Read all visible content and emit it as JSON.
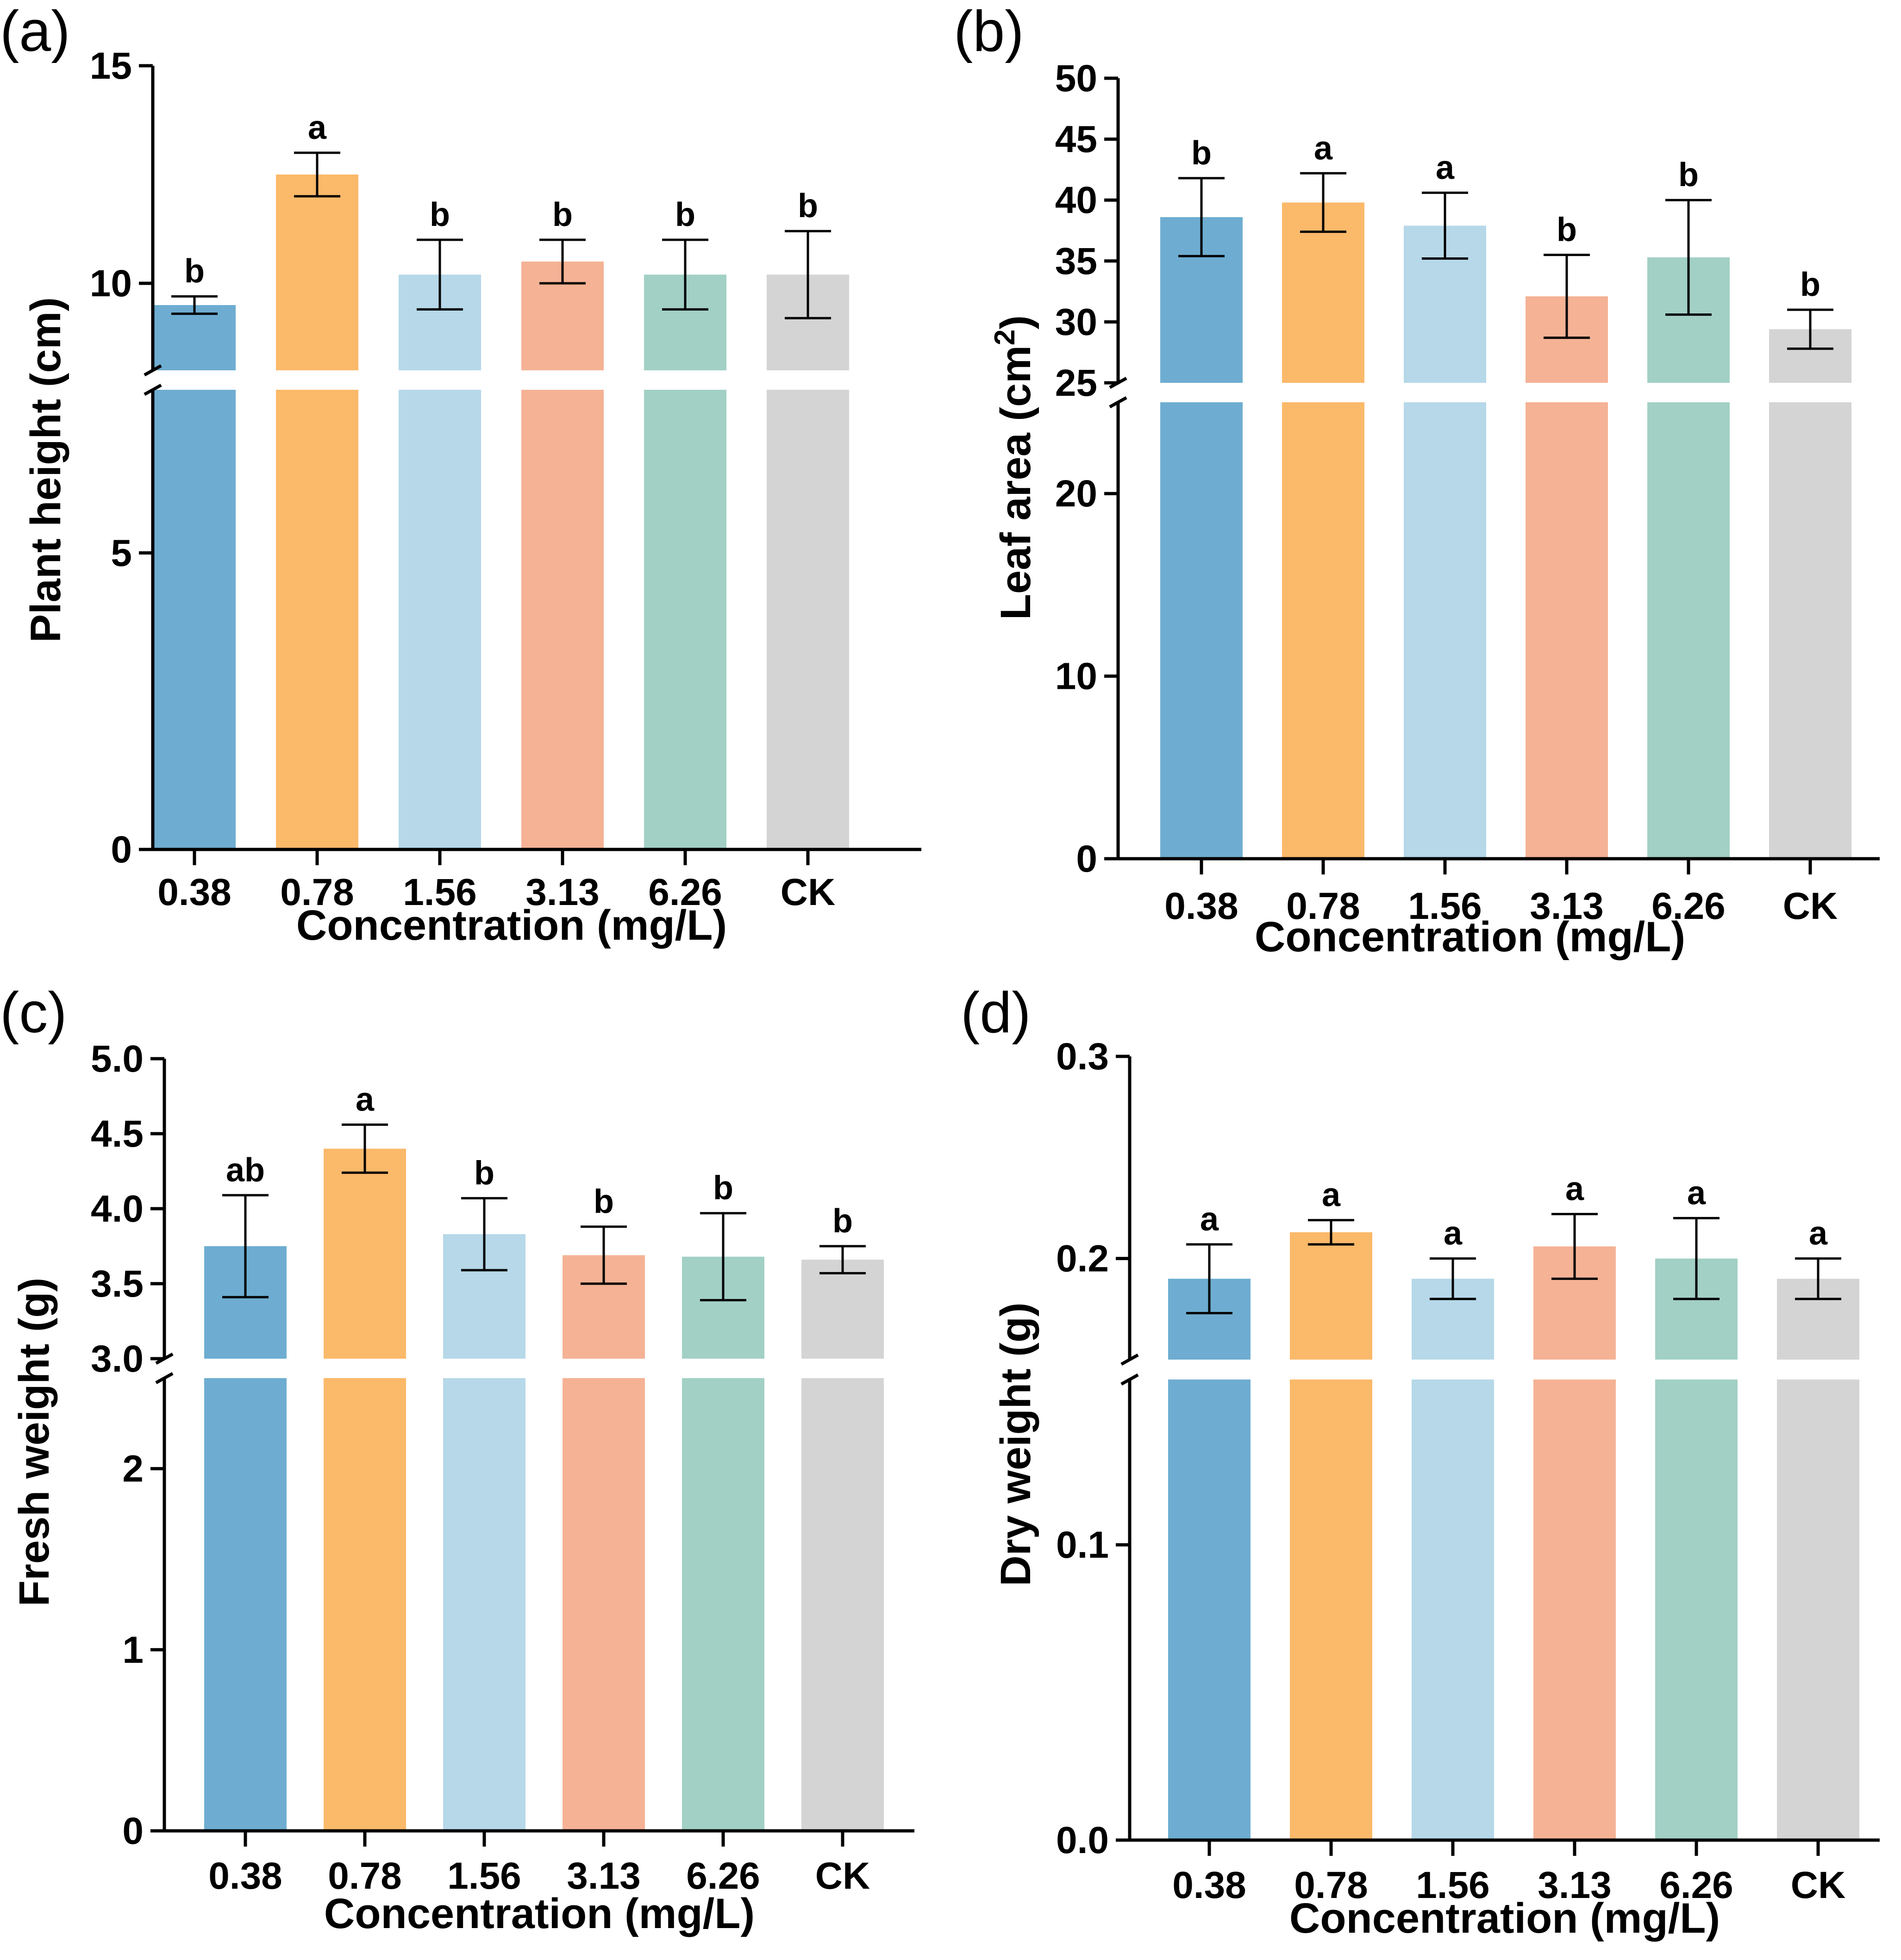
{
  "chart_data": [
    {
      "panel": "(a)",
      "type": "bar",
      "xlabel": "Concentration (mg/L)",
      "ylabel": "Plant height (cm)",
      "ylabel_super": "",
      "ylabel_tail": "",
      "categories": [
        "0.38",
        "0.78",
        "1.56",
        "3.13",
        "6.26",
        "CK"
      ],
      "values": [
        9.5,
        12.5,
        10.2,
        10.5,
        10.2,
        10.2
      ],
      "errors": [
        0.2,
        0.5,
        0.8,
        0.5,
        0.8,
        1.0
      ],
      "significance": [
        "b",
        "a",
        "b",
        "b",
        "b",
        "b"
      ],
      "axis_break": true,
      "ylim_lower": [
        0,
        7.75
      ],
      "ylim_upper": [
        8,
        15
      ],
      "yticks_lower": [
        "0",
        "5"
      ],
      "yticks_upper": [
        "10",
        "15"
      ]
    },
    {
      "panel": "(b)",
      "type": "bar",
      "xlabel": "Concentration (mg/L)",
      "ylabel": "Leaf area (cm",
      "ylabel_super": "2",
      "ylabel_tail": ")",
      "categories": [
        "0.38",
        "0.78",
        "1.56",
        "3.13",
        "6.26",
        "CK"
      ],
      "values": [
        38.6,
        39.8,
        37.9,
        32.1,
        35.3,
        29.4
      ],
      "errors": [
        3.2,
        2.4,
        2.7,
        3.4,
        4.7,
        1.6
      ],
      "significance": [
        "b",
        "a",
        "a",
        "b",
        "b",
        "b"
      ],
      "axis_break": true,
      "ylim_lower": [
        0,
        25
      ],
      "ylim_upper": [
        25,
        50
      ],
      "yticks_lower": [
        "0",
        "10",
        "20"
      ],
      "yticks_upper": [
        "25",
        "30",
        "35",
        "40",
        "45",
        "50"
      ]
    },
    {
      "panel": "(c)",
      "type": "bar",
      "xlabel": "Concentration (mg/L)",
      "ylabel": "Fresh weight (g)",
      "ylabel_super": "",
      "ylabel_tail": "",
      "categories": [
        "0.38",
        "0.78",
        "1.56",
        "3.13",
        "6.26",
        "CK"
      ],
      "values": [
        3.75,
        4.4,
        3.83,
        3.69,
        3.68,
        3.66
      ],
      "errors": [
        0.34,
        0.16,
        0.24,
        0.19,
        0.29,
        0.09
      ],
      "significance": [
        "ab",
        "a",
        "b",
        "b",
        "b",
        "b"
      ],
      "axis_break": true,
      "ylim_lower": [
        0,
        2.5
      ],
      "ylim_upper": [
        3.0,
        5.0
      ],
      "yticks_lower": [
        "0",
        "1",
        "2"
      ],
      "yticks_upper": [
        "3.0",
        "3.5",
        "4.0",
        "4.5",
        "5.0"
      ]
    },
    {
      "panel": "(d)",
      "type": "bar",
      "xlabel": "Concentration (mg/L)",
      "ylabel": "Dry weight (g)",
      "ylabel_super": "",
      "ylabel_tail": "",
      "categories": [
        "0.38",
        "0.78",
        "1.56",
        "3.13",
        "6.26",
        "CK"
      ],
      "values": [
        0.19,
        0.213,
        0.19,
        0.206,
        0.2,
        0.19
      ],
      "errors": [
        0.017,
        0.006,
        0.01,
        0.016,
        0.02,
        0.01
      ],
      "significance": [
        "a",
        "a",
        "a",
        "a",
        "a",
        "a"
      ],
      "axis_break": true,
      "ylim_lower": [
        0,
        0.156
      ],
      "ylim_upper": [
        0.15,
        0.3
      ],
      "yticks_lower": [
        "0.0",
        "0.1"
      ],
      "yticks_upper": [
        "0.2",
        "0.3"
      ]
    }
  ],
  "colors": {
    "bars": [
      "#6eadd1",
      "#fbb96a",
      "#b6d8e9",
      "#f5b295",
      "#a2d0c5",
      "#d4d4d4"
    ],
    "axis": "#000000",
    "background": "#ffffff"
  }
}
